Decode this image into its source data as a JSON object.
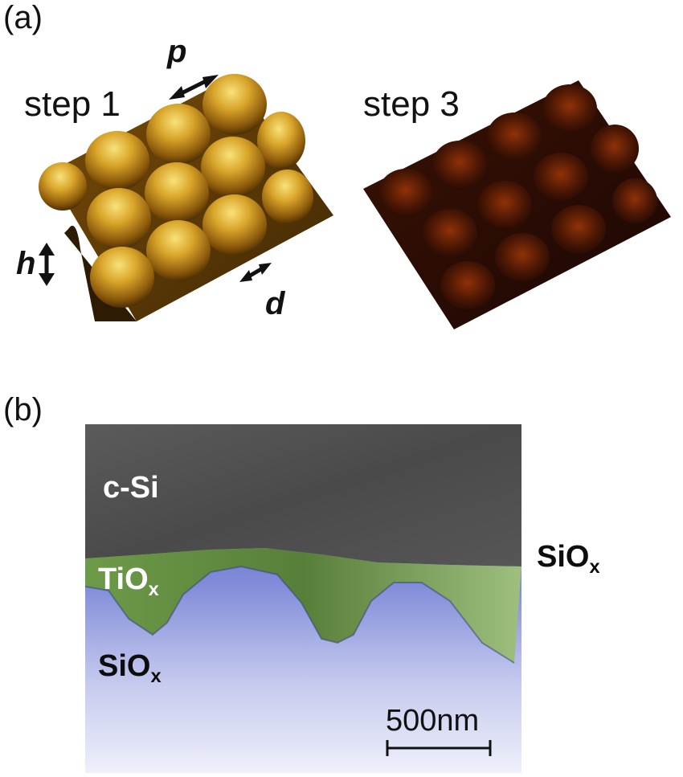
{
  "panel_a": {
    "label": "(a)",
    "step1": {
      "label": "step 1"
    },
    "step3": {
      "label": "step 3"
    },
    "dims": {
      "p": "p",
      "h": "h",
      "d": "d"
    },
    "colors": {
      "step1_peak": "#f4d35a",
      "step1_base": "#6b4406",
      "step3_peak": "#8c2f08",
      "step3_base": "#1a0703"
    }
  },
  "panel_b": {
    "label": "(b)",
    "layers": {
      "c_si": "c-Si",
      "tiox": {
        "base": "TiO",
        "sub": "x"
      },
      "siox_inner": {
        "base": "SiO",
        "sub": "x"
      },
      "siox_right": {
        "base": "SiO",
        "sub": "x"
      }
    },
    "scale_bar": {
      "label": "500nm"
    },
    "colors": {
      "c_si": "#4e4e4e",
      "tiox": "#5f8a3e",
      "siox": "#5a68c8"
    }
  }
}
